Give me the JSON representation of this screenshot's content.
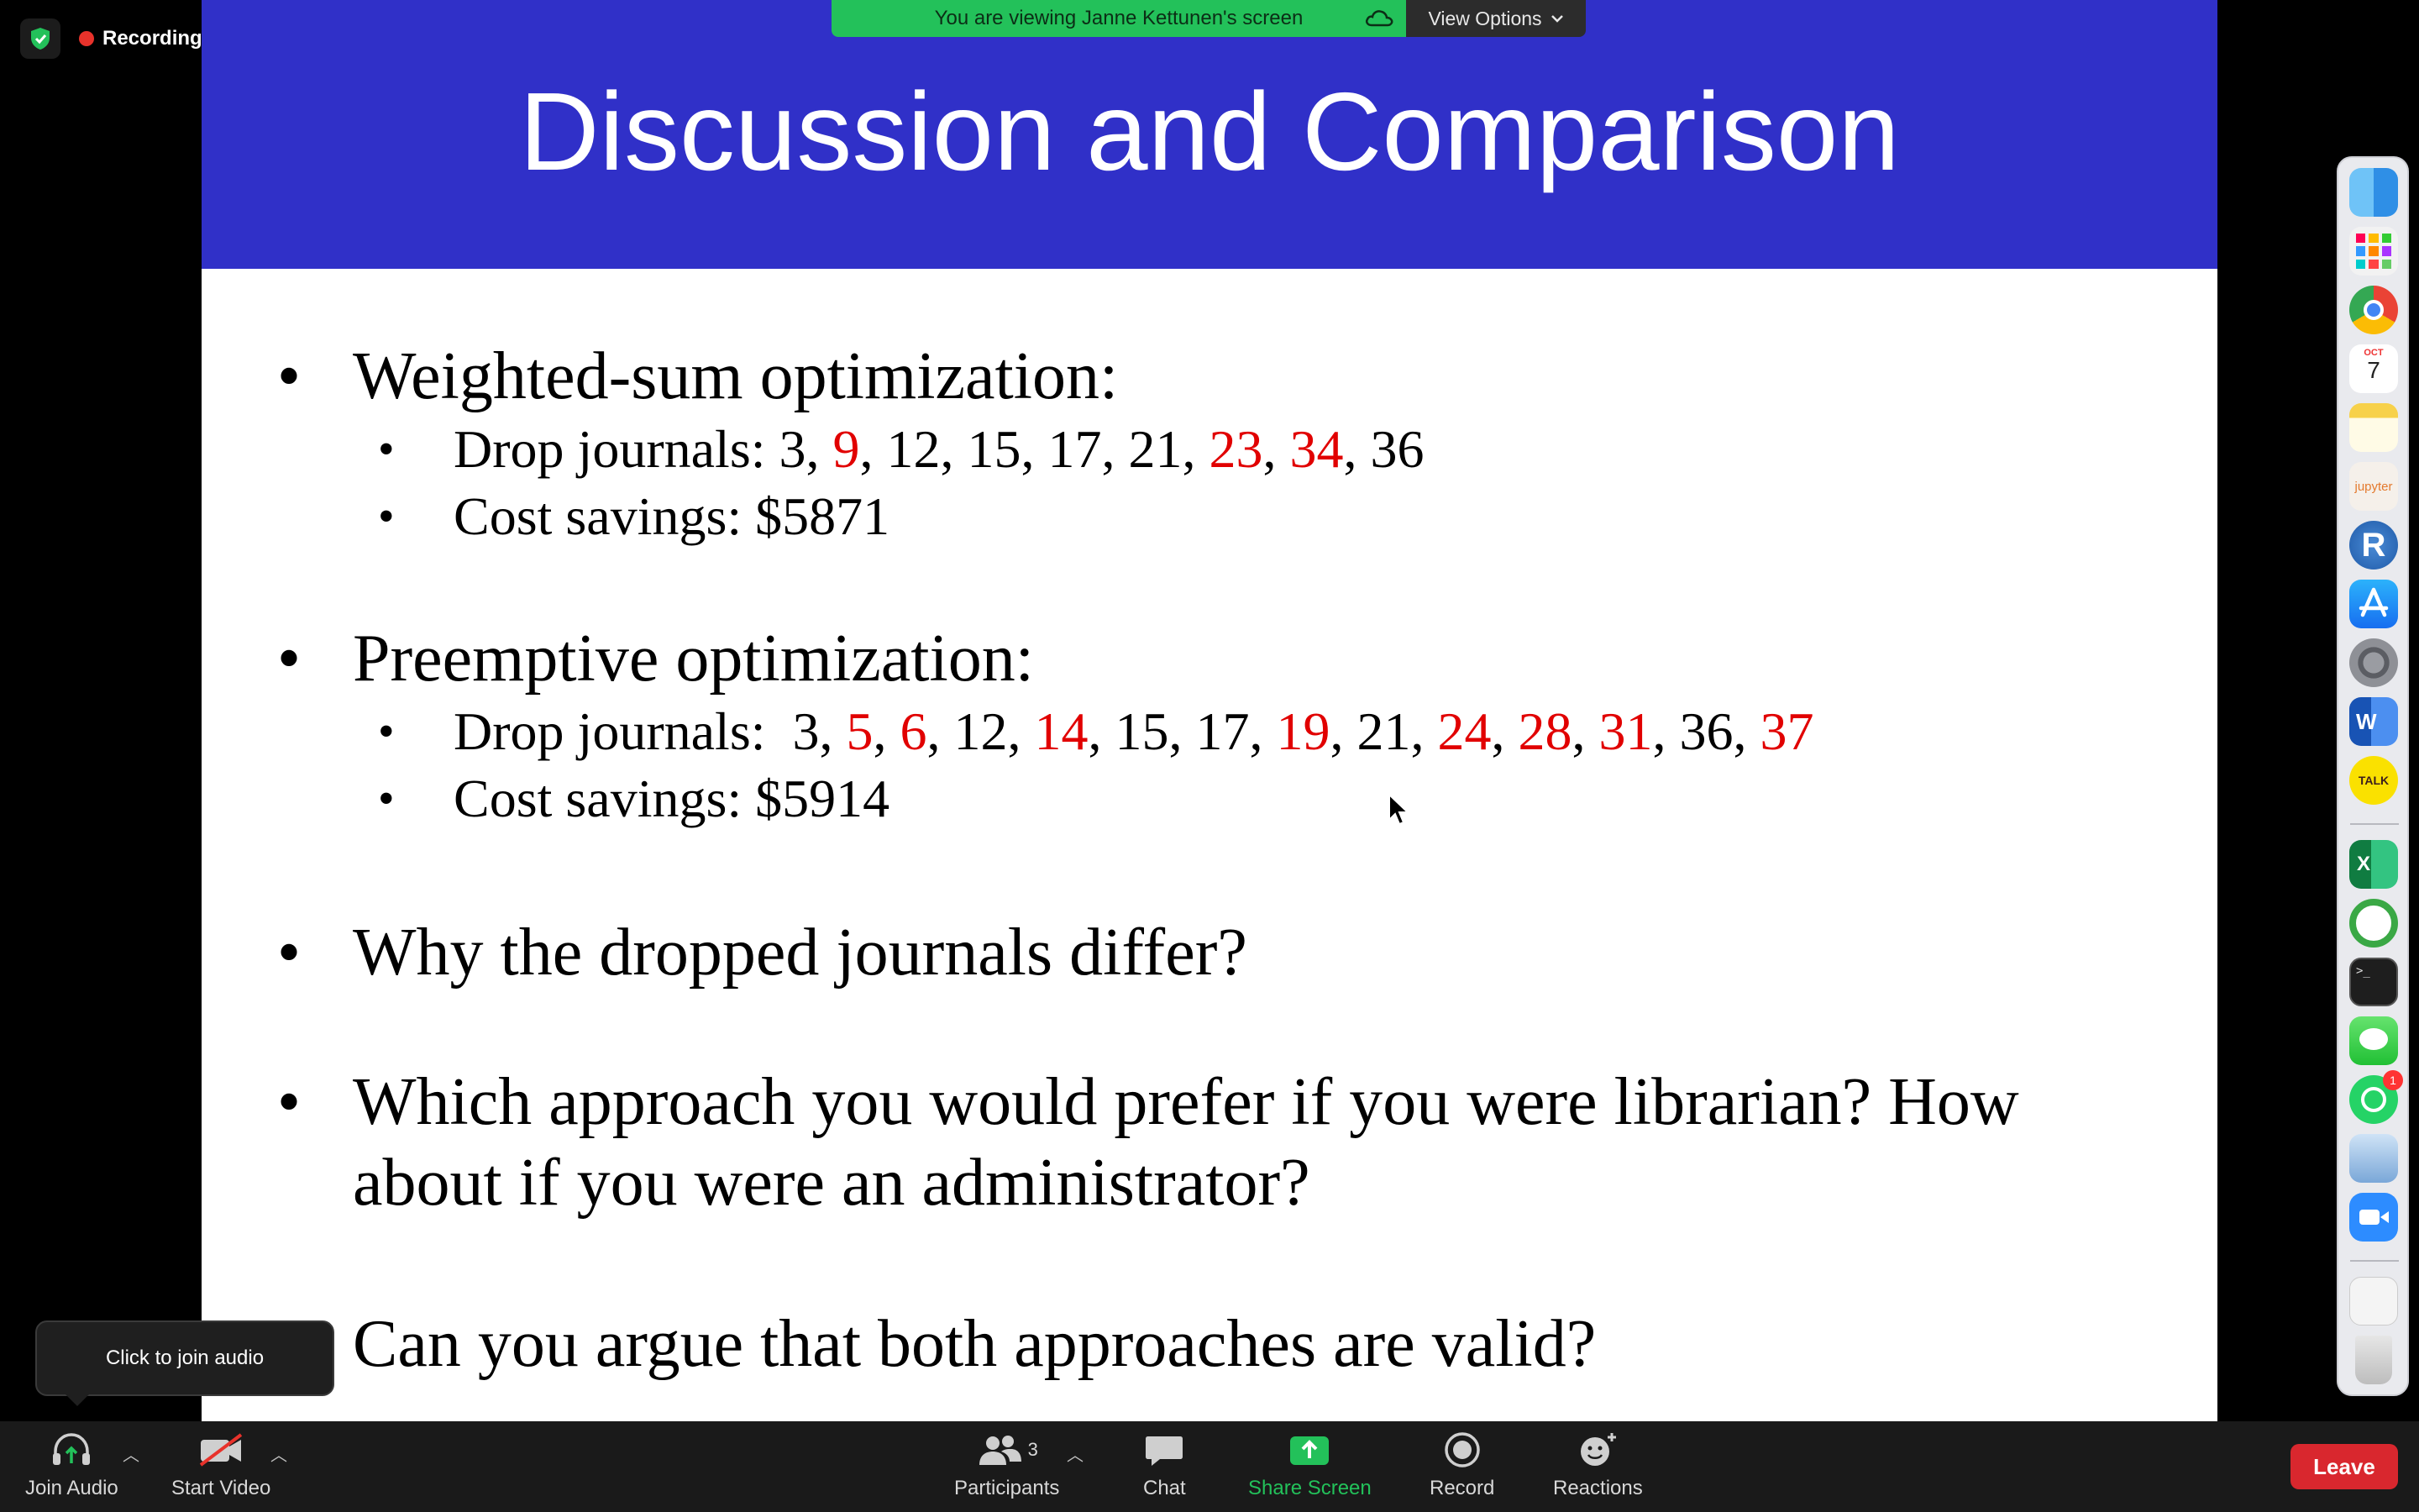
{
  "status": {
    "recording_label": "Recording"
  },
  "banner": {
    "viewing_text": "You are viewing Janne Kettunen's screen",
    "view_options_label": "View Options"
  },
  "slide": {
    "title": "Discussion and Comparison",
    "sections": [
      {
        "heading": "Weighted-sum optimization:",
        "drop_label": "Drop journals: ",
        "journals": [
          {
            "n": "3",
            "changed": false
          },
          {
            "n": "9",
            "changed": true
          },
          {
            "n": "12",
            "changed": false
          },
          {
            "n": "15",
            "changed": false
          },
          {
            "n": "17",
            "changed": false
          },
          {
            "n": "21",
            "changed": false
          },
          {
            "n": "23",
            "changed": true
          },
          {
            "n": "34",
            "changed": true
          },
          {
            "n": "36",
            "changed": false
          }
        ],
        "cost_savings": "Cost savings: $5871"
      },
      {
        "heading": "Preemptive optimization:",
        "drop_label": "Drop journals:  ",
        "journals": [
          {
            "n": "3",
            "changed": false
          },
          {
            "n": "5",
            "changed": true
          },
          {
            "n": "6",
            "changed": true
          },
          {
            "n": "12",
            "changed": false
          },
          {
            "n": "14",
            "changed": true
          },
          {
            "n": "15",
            "changed": false
          },
          {
            "n": "17",
            "changed": false
          },
          {
            "n": "19",
            "changed": true
          },
          {
            "n": "21",
            "changed": false
          },
          {
            "n": "24",
            "changed": true
          },
          {
            "n": "28",
            "changed": true
          },
          {
            "n": "31",
            "changed": true
          },
          {
            "n": "36",
            "changed": false
          },
          {
            "n": "37",
            "changed": true
          }
        ],
        "cost_savings": "Cost savings: $5914"
      }
    ],
    "questions": [
      "Why the dropped journals differ?",
      "Which approach you would prefer if you were librarian? How",
      "about if you were an administrator?",
      "Can you argue that both approaches are valid?"
    ],
    "bullet": "•",
    "highlight_color": "#e10000"
  },
  "dock": {
    "apps": [
      "finder-icon",
      "launchpad-icon",
      "chrome-icon",
      "calendar-icon",
      "notes-icon",
      "jupyter-icon",
      "r-icon",
      "app-store-icon",
      "system-preferences-icon",
      "word-icon",
      "kakaotalk-icon",
      "excel-icon",
      "activity-icon",
      "terminal-icon",
      "messages-icon",
      "whatsapp-icon",
      "preview-icon",
      "zoom-icon",
      "documents-icon",
      "trash-icon"
    ],
    "calendar": {
      "month": "OCT",
      "day": "7"
    },
    "jupyter_label": "jupyter",
    "r_label": "R",
    "word_label": "W",
    "kakaotalk_label": "TALK",
    "excel_label": "X",
    "terminal_label": ">_",
    "whatsapp_badge": "1"
  },
  "tooltip": {
    "text": "Click to join audio"
  },
  "toolbar": {
    "join_audio": "Join Audio",
    "start_video": "Start Video",
    "participants": "Participants",
    "participants_count": "3",
    "chat": "Chat",
    "share_screen": "Share Screen",
    "record": "Record",
    "reactions": "Reactions",
    "leave": "Leave"
  }
}
